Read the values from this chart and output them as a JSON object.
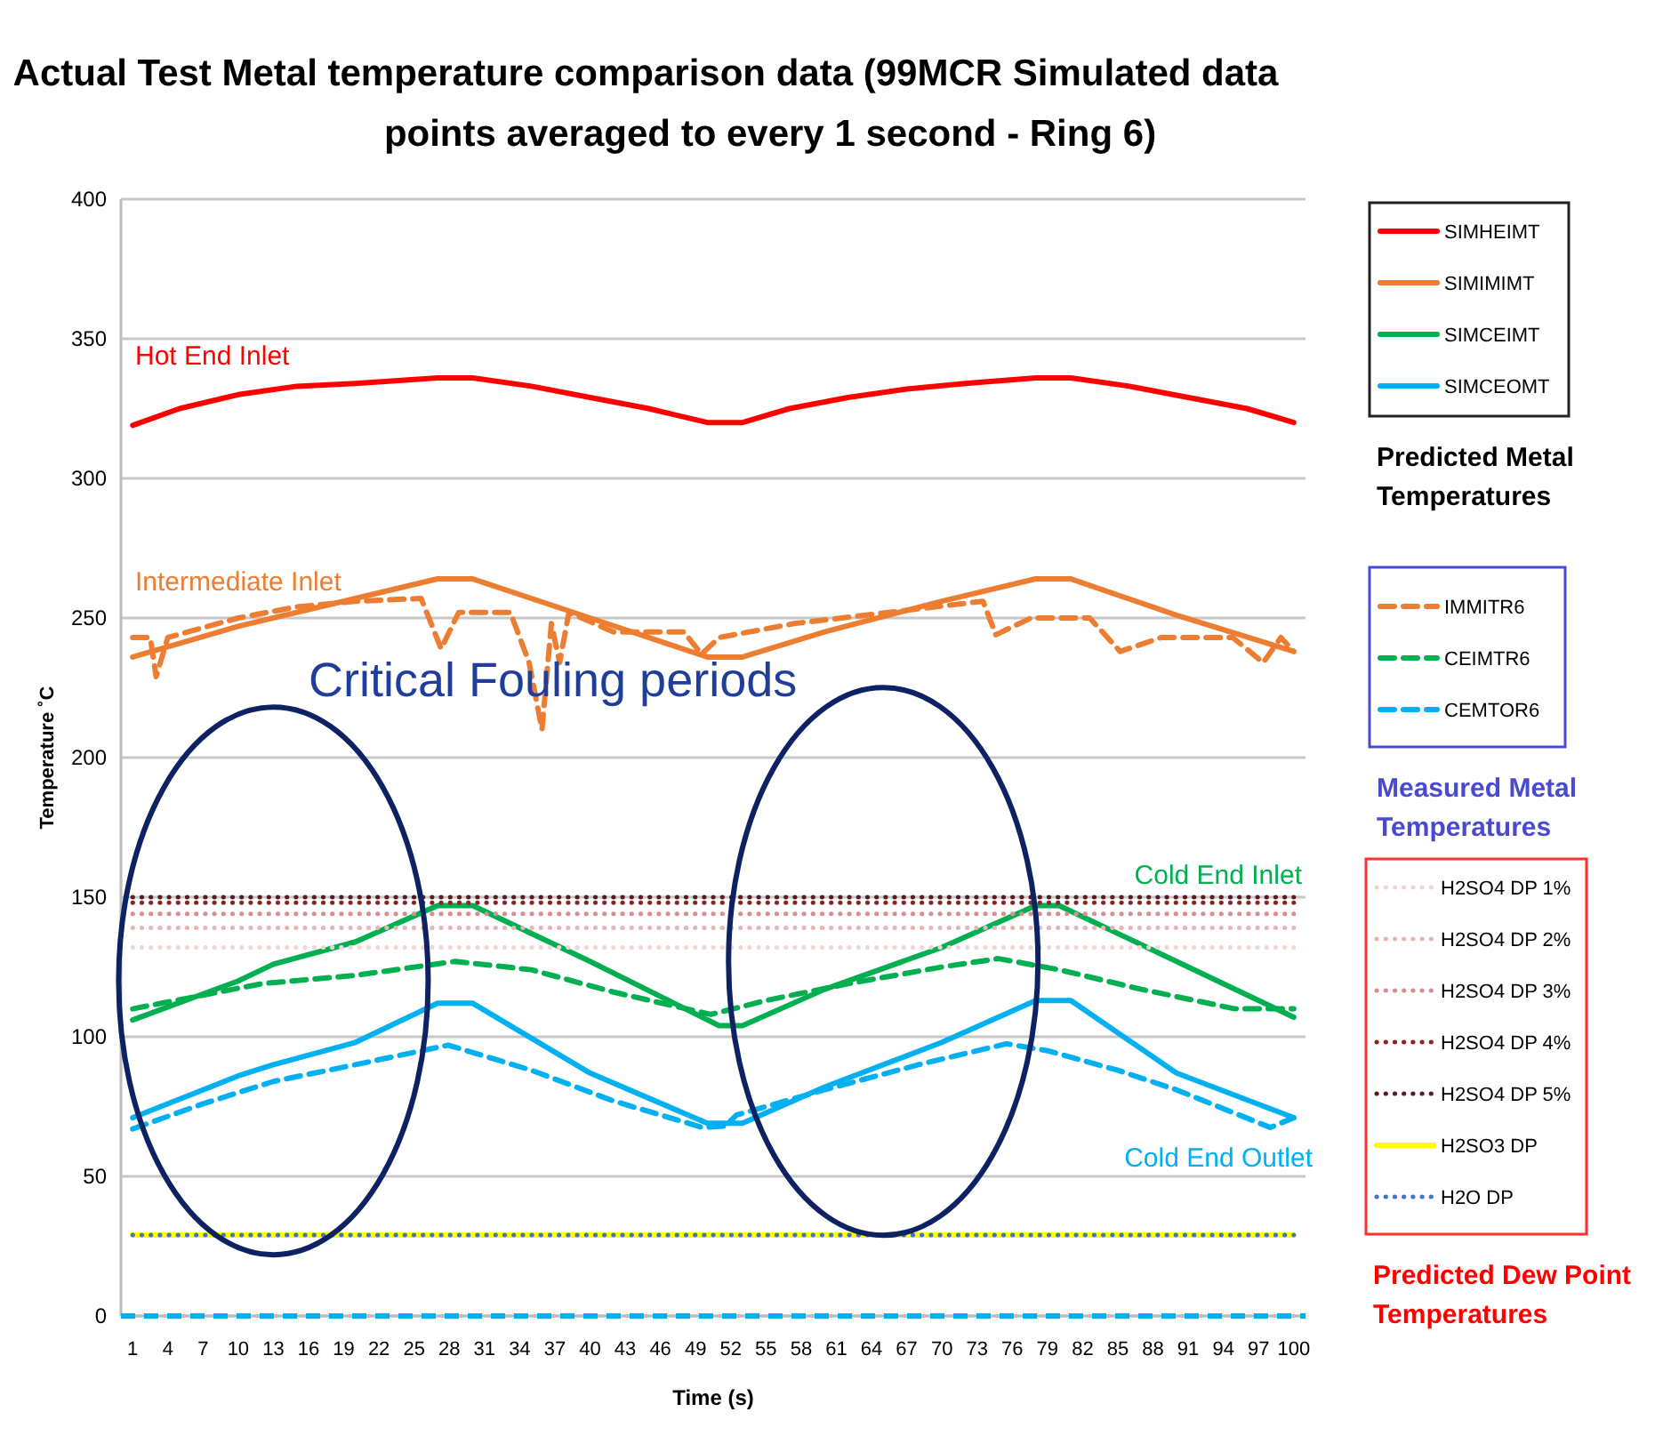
{
  "chart_data": {
    "type": "line",
    "title": "Actual Test Metal temperature comparison data (99MCR Simulated data points averaged to every 1 second - Ring 6)",
    "xlabel": "Time (s)",
    "ylabel": "Temperature ˚C",
    "xlim": [
      0,
      101
    ],
    "xticks": [
      1,
      4,
      7,
      10,
      13,
      16,
      19,
      22,
      25,
      28,
      31,
      34,
      37,
      40,
      43,
      46,
      49,
      52,
      55,
      58,
      61,
      64,
      67,
      70,
      73,
      76,
      79,
      82,
      85,
      88,
      91,
      94,
      97,
      100
    ],
    "ylim": [
      0,
      400
    ],
    "yticks": [
      0,
      50,
      100,
      150,
      200,
      250,
      300,
      350,
      400
    ],
    "grid": "y",
    "legend": "right",
    "series": [
      {
        "name": "SIMHEIMT",
        "color": "#ff0000",
        "line_style": "solid",
        "x": [
          1,
          5,
          10,
          15,
          20,
          27,
          30,
          35,
          40,
          45,
          50,
          53,
          57,
          62,
          67,
          72,
          78,
          81,
          86,
          91,
          96,
          100
        ],
        "values": [
          319,
          325,
          330,
          333,
          334,
          336,
          336,
          333,
          329,
          325,
          320,
          320,
          325,
          329,
          332,
          334,
          336,
          336,
          333,
          329,
          325,
          320
        ]
      },
      {
        "name": "SIMIMIMT",
        "color": "#ed7d31",
        "line_style": "solid",
        "x": [
          1,
          10,
          20,
          27,
          30,
          40,
          50,
          53,
          60,
          70,
          78,
          81,
          90,
          100
        ],
        "values": [
          236,
          247,
          257,
          264,
          264,
          250,
          236,
          236,
          245,
          256,
          264,
          264,
          251,
          238
        ]
      },
      {
        "name": "SIMCEIMT",
        "color": "#00b050",
        "line_style": "solid",
        "x": [
          1,
          10,
          13,
          20,
          27,
          30,
          40,
          51,
          53,
          60,
          70,
          78,
          80,
          90,
          100
        ],
        "values": [
          106,
          120,
          126,
          134,
          147,
          147,
          127,
          104,
          104,
          117,
          132,
          147,
          147,
          127,
          107
        ]
      },
      {
        "name": "SIMCEOMT",
        "color": "#00b0f0",
        "line_style": "solid",
        "x": [
          1,
          10,
          13,
          20,
          27,
          30,
          40,
          50,
          53,
          60,
          70,
          78,
          81,
          90,
          100
        ],
        "values": [
          71,
          86,
          90,
          98,
          112,
          112,
          87,
          69,
          69,
          82,
          98,
          113,
          113,
          87,
          71
        ]
      },
      {
        "name": "IMMITR6",
        "color": "#ed7d31",
        "line_style": "dashed",
        "x": [
          1,
          2.5,
          3,
          4,
          10,
          15,
          20,
          25.6,
          27.3,
          28.8,
          33.2,
          34.8,
          35.9,
          36.7,
          37.4,
          38.2,
          42,
          48,
          49.5,
          51,
          57.4,
          67.5,
          73.5,
          74.6,
          77.6,
          82.6,
          85.2,
          88.7,
          94.8,
          97.4,
          98.9,
          100
        ],
        "values": [
          243,
          243,
          229,
          243,
          250,
          254,
          256,
          257,
          239,
          252,
          252,
          234,
          210,
          248,
          234,
          252,
          245,
          245,
          237,
          243,
          248,
          253,
          256,
          244,
          250,
          250,
          238,
          243,
          243,
          234,
          243,
          238
        ]
      },
      {
        "name": "CEIMTR6",
        "color": "#00b050",
        "line_style": "dashed",
        "x": [
          1,
          12,
          20,
          28.5,
          35,
          42,
          50.3,
          55,
          62,
          70,
          74.8,
          80,
          87,
          95,
          100
        ],
        "values": [
          110,
          119,
          122,
          127,
          124,
          116,
          108,
          113,
          119,
          125,
          128,
          124,
          117,
          110,
          110
        ]
      },
      {
        "name": "CEMTOR6",
        "color": "#00b0f0",
        "line_style": "dashed",
        "x": [
          1,
          7,
          13,
          20,
          27.9,
          35,
          42,
          49.6,
          51.5,
          52.5,
          60,
          68,
          75.5,
          79,
          85,
          90,
          98,
          100
        ],
        "values": [
          67,
          76,
          84,
          90,
          97,
          88,
          77,
          67.5,
          68,
          72,
          81,
          90,
          97.5,
          95,
          88,
          81,
          67.5,
          71
        ]
      },
      {
        "name": "H2SO4 DP 1%",
        "color": "#f2d4d4",
        "line_style": "dotted",
        "x": [
          1,
          100
        ],
        "values": [
          132,
          132
        ]
      },
      {
        "name": "H2SO4 DP 2%",
        "color": "#e8b4b4",
        "line_style": "dotted",
        "x": [
          1,
          100
        ],
        "values": [
          139,
          139
        ]
      },
      {
        "name": "H2SO4 DP 3%",
        "color": "#d98e8e",
        "line_style": "dotted",
        "x": [
          1,
          100
        ],
        "values": [
          144,
          144
        ]
      },
      {
        "name": "H2SO4 DP 4%",
        "color": "#8b2525",
        "line_style": "dotted",
        "x": [
          1,
          100
        ],
        "values": [
          148,
          148
        ]
      },
      {
        "name": "H2SO4 DP 5%",
        "color": "#5a1c1c",
        "line_style": "dotted",
        "x": [
          1,
          100
        ],
        "values": [
          150,
          150
        ]
      },
      {
        "name": "H2SO3 DP",
        "color": "#ffff00",
        "line_style": "solid",
        "x": [
          1,
          100
        ],
        "values": [
          29,
          29
        ]
      },
      {
        "name": "H2O DP",
        "color": "#4472c4",
        "line_style": "dotted",
        "x": [
          1,
          100
        ],
        "values": [
          29,
          29
        ]
      }
    ],
    "ref_lines": [
      {
        "axis": "y",
        "value": 0,
        "color": "#00b0f0",
        "line_style": "dashed"
      }
    ],
    "annotations": [
      "Hot End Inlet",
      "Intermediate Inlet",
      "Cold End Inlet",
      "Cold End Outlet",
      "Critical Fouling periods",
      "Predicted Metal Temperatures",
      "Measured Metal Temperatures",
      "Predicted Dew Point Temperatures"
    ]
  }
}
